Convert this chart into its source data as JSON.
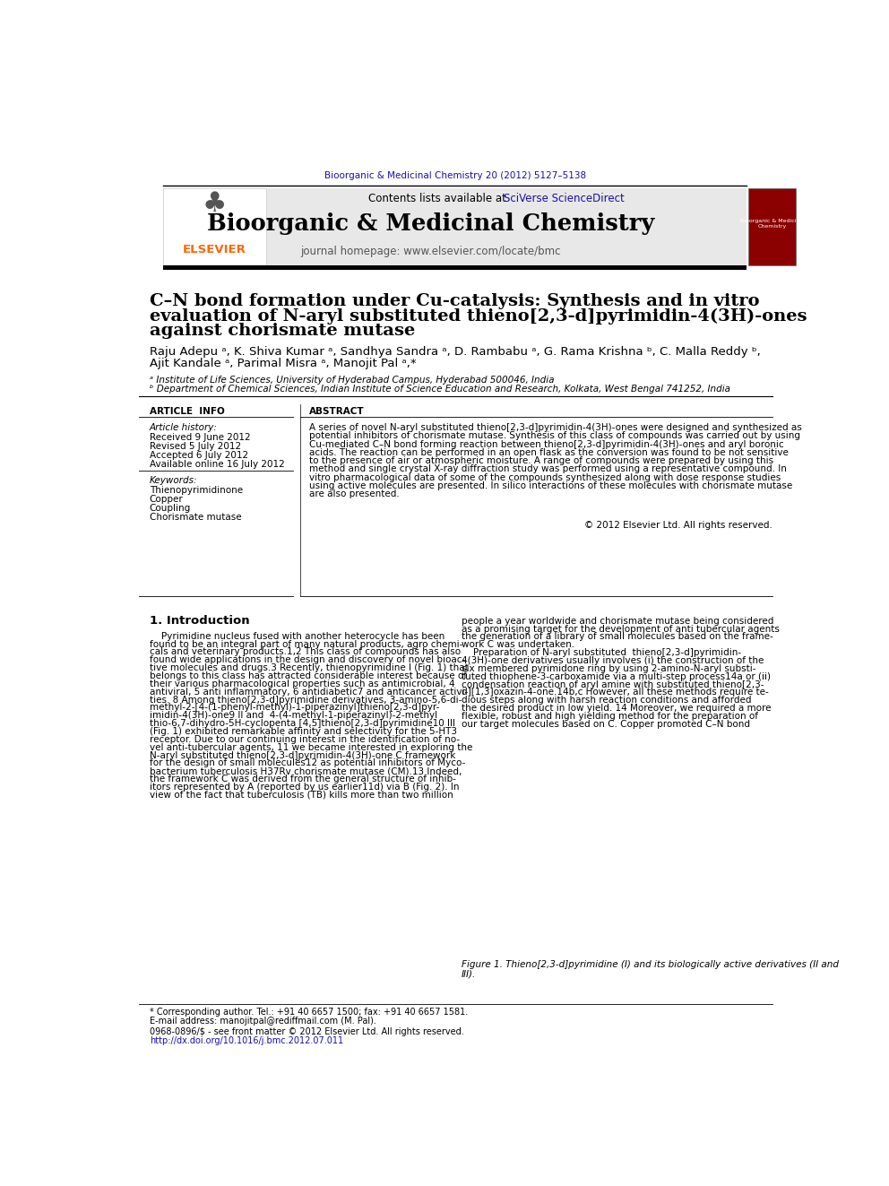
{
  "bg_color": "#ffffff",
  "top_citation": "Bioorganic & Medicinal Chemistry 20 (2012) 5127–5138",
  "journal_name": "Bioorganic & Medicinal Chemistry",
  "journal_homepage": "journal homepage: www.elsevier.com/locate/bmc",
  "contents_text_before": "Contents lists available at ",
  "contents_text_link": "SciVerse ScienceDirect",
  "article_title_line1": "C–N bond formation under Cu-catalysis: Synthesis and in vitro",
  "article_title_line2": "evaluation of N-aryl substituted thieno[2,3-d]pyrimidin-4(3H)-ones",
  "article_title_line3": "against chorismate mutase",
  "authors": "Raju Adepu ᵃ, K. Shiva Kumar ᵃ, Sandhya Sandra ᵃ, D. Rambabu ᵃ, G. Rama Krishna ᵇ, C. Malla Reddy ᵇ,",
  "authors2": "Ajit Kandale ᵃ, Parimal Misra ᵃ, Manojit Pal ᵃ,*",
  "affil_a": "ᵃ Institute of Life Sciences, University of Hyderabad Campus, Hyderabad 500046, India",
  "affil_b": "ᵇ Department of Chemical Sciences, Indian Institute of Science Education and Research, Kolkata, West Bengal 741252, India",
  "article_info_label": "ARTICLE  INFO",
  "abstract_label": "ABSTRACT",
  "article_history_label": "Article history:",
  "received": "Received 9 June 2012",
  "revised": "Revised 5 July 2012",
  "accepted": "Accepted 6 July 2012",
  "available": "Available online 16 July 2012",
  "keywords_label": "Keywords:",
  "keyword1": "Thienopyrimidinone",
  "keyword2": "Copper",
  "keyword3": "Coupling",
  "keyword4": "Chorismate mutase",
  "abstract_text": "A series of novel N-aryl substituted thieno[2,3-d]pyrimidin-4(3H)-ones were designed and synthesized as\npotential inhibitors of chorismate mutase. Synthesis of this class of compounds was carried out by using\nCu-mediated C–N bond forming reaction between thieno[2,3-d]pyrimidin-4(3H)-ones and aryl boronic\nacids. The reaction can be performed in an open flask as the conversion was found to be not sensitive\nto the presence of air or atmospheric moisture. A range of compounds were prepared by using this\nmethod and single crystal X-ray diffraction study was performed using a representative compound. In\nvitro pharmacological data of some of the compounds synthesized along with dose response studies\nusing active molecules are presented. In silico interactions of these molecules with chorismate mutase\nare also presented.",
  "copyright": "© 2012 Elsevier Ltd. All rights reserved.",
  "intro_heading": "1. Introduction",
  "intro_col1_lines": [
    "    Pyrimidine nucleus fused with another heterocycle has been",
    "found to be an integral part of many natural products, agro chemi-",
    "cals and veterinary products.1,2 This class of compounds has also",
    "found wide applications in the design and discovery of novel bioac-",
    "tive molecules and drugs.3 Recently, thienopyrimidine I (Fig. 1) that",
    "belongs to this class has attracted considerable interest because of",
    "their various pharmacological properties such as antimicrobial, 4",
    "antiviral, 5 anti inflammatory, 6 antidiabetic7 and anticancer activi-",
    "ties. 8 Among thieno[2,3-d]pyrimidine derivatives, 3-amino-5,6-di-",
    "methyl-2-[4-(1-phenyl-methyl)-1-piperazinyl]thieno[2,3-d]pyr-",
    "imidin-4(3H)-one9 II and  4-(4-methyl-1-piperazinyl)-2-methyl",
    "thio-6,7-dihydro-5H-cyclopenta [4,5]thieno[2,3-d]pyrimidine10 III",
    "(Fig. 1) exhibited remarkable affinity and selectivity for the 5-HT3",
    "receptor. Due to our continuing interest in the identification of no-",
    "vel anti-tubercular agents, 11 we became interested in exploring the",
    "N-aryl substituted thieno[2,3-d]pyrimidin-4(3H)-one C framework",
    "for the design of small molecules12 as potential inhibitors of Myco-",
    "bacterium tuberculosis H37Rv chorismate mutase (CM).13 Indeed,",
    "the framework C was derived from the general structure of inhib-",
    "itors represented by A (reported by us earlier11d) via B (Fig. 2). In",
    "view of the fact that tuberculosis (TB) kills more than two million"
  ],
  "intro_col2_lines": [
    "people a year worldwide and chorismate mutase being considered",
    "as a promising target for the development of anti tubercular agents",
    "the generation of a library of small molecules based on the frame-",
    "work C was undertaken.",
    "    Preparation of N-aryl substituted  thieno[2,3-d]pyrimidin-",
    "4(3H)-one derivatives usually involves (i) the construction of the",
    "six membered pyrimidone ring by using 2-amino-N-aryl substi-",
    "tuted thiophene-3-carboxamide via a multi-step process14a or (ii)",
    "condensation reaction of aryl amine with substituted thieno[2,3-",
    "d][1,3]oxazin-4-one.14b,c However, all these methods require te-",
    "dious steps along with harsh reaction conditions and afforded",
    "the desired product in low yield. 14 Moreover, we required a more",
    "flexible, robust and high yielding method for the preparation of",
    "our target molecules based on C. Copper promoted C–N bond"
  ],
  "fig_caption_line1": "Figure 1. Thieno[2,3-d]pyrimidine (I) and its biologically active derivatives (II and",
  "fig_caption_line2": "III).",
  "footer_note": "* Corresponding author. Tel.: +91 40 6657 1500; fax: +91 40 6657 1581.",
  "footer_email": "E-mail address: manojitpal@rediffmail.com (M. Pal).",
  "footer_issn": "0968-0896/$ - see front matter © 2012 Elsevier Ltd. All rights reserved.",
  "footer_doi": "http://dx.doi.org/10.1016/j.bmc.2012.07.011",
  "elsevier_text": "ELSEVIER",
  "elsevier_color": "#FF6600",
  "link_color": "#1a0dab",
  "cover_bg": "#8B0000"
}
